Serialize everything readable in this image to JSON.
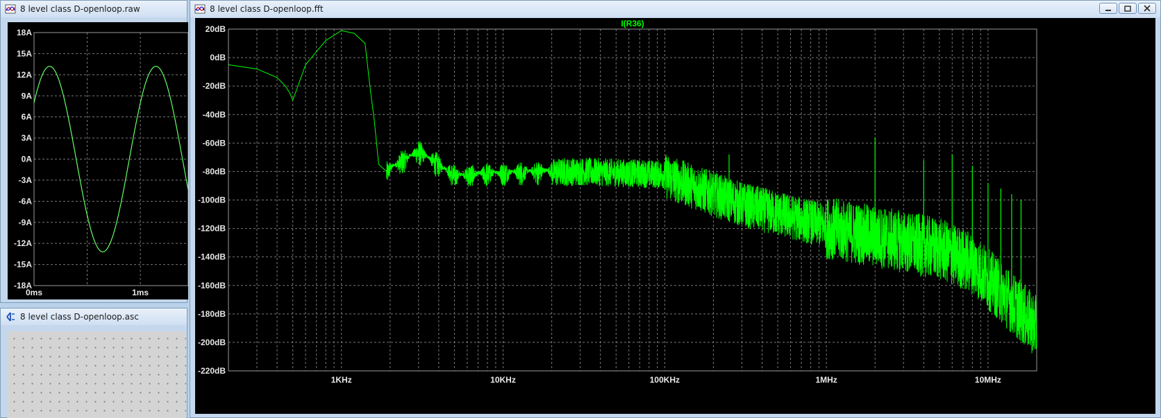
{
  "windows": {
    "raw": {
      "title": "8 level class D-openloop.raw"
    },
    "asc": {
      "title": "8 level class D-openloop.asc"
    },
    "fft": {
      "title": "8 level class D-openloop.fft"
    }
  },
  "colors": {
    "trace": "#00ff00",
    "trace_raw": "#66ff66",
    "grid": "#7a7a7a",
    "plot_bg": "#000000"
  },
  "raw_plot": {
    "ylabels": [
      "18A",
      "15A",
      "12A",
      "9A",
      "6A",
      "3A",
      "0A",
      "-3A",
      "-6A",
      "-9A",
      "-12A",
      "-15A",
      "-18A"
    ],
    "xlabels": [
      "0ms",
      "1ms"
    ],
    "chart_data": {
      "type": "line",
      "series": [
        {
          "amplitude_A": 13.2,
          "period_ms": 1.0,
          "offset_A": 0
        }
      ],
      "xlabel": "",
      "ylabel": "",
      "ylim": [
        -18,
        18
      ],
      "xlim": [
        0,
        1.45
      ]
    }
  },
  "fft_plot": {
    "trace_label": "I(R36)",
    "ylabels": [
      "20dB",
      "0dB",
      "-20dB",
      "-40dB",
      "-60dB",
      "-80dB",
      "-100dB",
      "-120dB",
      "-140dB",
      "-160dB",
      "-180dB",
      "-200dB",
      "-220dB"
    ],
    "xlabels": [
      "1KHz",
      "10KHz",
      "100KHz",
      "1MHz",
      "10MHz"
    ],
    "chart_data": {
      "type": "line",
      "title": "I(R36)",
      "x_scale": "log",
      "xlim_hz": [
        200,
        20000000
      ],
      "ylim": [
        -220,
        20
      ],
      "series": [
        {
          "name": "I(R36)",
          "x_hz": [
            200,
            300,
            400,
            450,
            480,
            500,
            600,
            800,
            1000,
            1200,
            1400,
            1500,
            1600,
            1700,
            1900,
            2000,
            3000,
            5000,
            10000,
            30000,
            100000,
            300000,
            1000000,
            3000000,
            5000000,
            8000000,
            20000000
          ],
          "y_db": [
            -5,
            -8,
            -14,
            -20,
            -25,
            -30,
            -5,
            12,
            19,
            17,
            10,
            -20,
            -45,
            -75,
            -80,
            -77,
            -65,
            -82,
            -80,
            -78,
            -80,
            -100,
            -115,
            -125,
            -130,
            -140,
            -185
          ]
        }
      ],
      "spikes_hz": [
        250000,
        2000000,
        4000000,
        6000000,
        8000000,
        10000000,
        12000000,
        14000000,
        16000000
      ]
    }
  }
}
